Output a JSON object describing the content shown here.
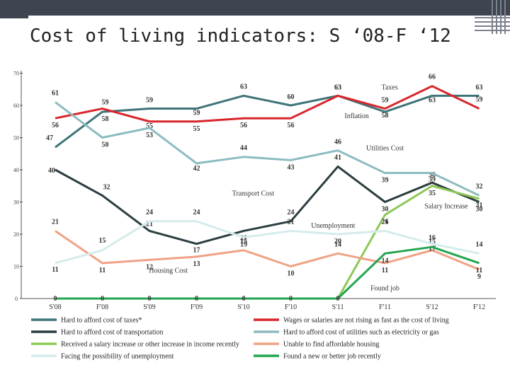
{
  "slide": {
    "title": "Cost of living indicators: S ‘08-F ‘12"
  },
  "colors": {
    "topbar": "#3f4451",
    "taxes": "#3e7479",
    "wages": "#d9262c",
    "transport": "#2b3d40",
    "utilities": "#8cbcc0",
    "salary": "#8dc857",
    "housing": "#f0a285",
    "unemployment": "#d5ecec",
    "found_job": "#23a54f"
  },
  "chart_data": {
    "type": "line",
    "categories": [
      "S'08",
      "F'08",
      "S'09",
      "F'09",
      "S'10",
      "F'10",
      "S'11",
      "F'11",
      "S'12",
      "F'12"
    ],
    "ylim": [
      0,
      70
    ],
    "yticks": [
      "0",
      "10",
      "20",
      "30",
      "40",
      "50",
      "60",
      "70"
    ],
    "series": [
      {
        "key": "taxes",
        "name": "Hard to afford cost of taxes",
        "legend_label": "Hard to afford cost of taxes*",
        "values": [
          47,
          58,
          59,
          59,
          63,
          60,
          63,
          58,
          63,
          63
        ],
        "labels": [
          "47",
          "58",
          "59",
          "59",
          "63",
          "60",
          "63",
          "58",
          "63",
          "63"
        ],
        "chart_label": "Taxes"
      },
      {
        "key": "wages",
        "name": "Wages or salaries are not rising as fast as the cost of living",
        "legend_label": "Wages or salaries are not rising as fast as the cost of living",
        "values": [
          56,
          59,
          55,
          55,
          56,
          56,
          63,
          59,
          66,
          59
        ],
        "labels": [
          "56",
          "59",
          "55",
          "55",
          "56",
          "56",
          "63",
          "59",
          "66",
          "59"
        ],
        "chart_label": "Inflation"
      },
      {
        "key": "transport",
        "name": "Hard to afford cost of transportation",
        "legend_label": "Hard to afford cost of transportation",
        "values": [
          40,
          32,
          21,
          17,
          21,
          24,
          41,
          30,
          36,
          30
        ],
        "labels": [
          "40",
          "32",
          "21",
          "17",
          "21",
          "24",
          "41",
          "30",
          "36",
          "30"
        ],
        "chart_label": "Transport Cost"
      },
      {
        "key": "utilities",
        "name": "Hard to afford cost of utilities such as electricity or gas",
        "legend_label": "Hard to afford cost of utilities such as electricity or gas",
        "values": [
          61,
          50,
          53,
          42,
          44,
          43,
          46,
          39,
          39,
          32
        ],
        "labels": [
          "61",
          "50",
          "53",
          "42",
          "44",
          "43",
          "46",
          "39",
          "39",
          "32"
        ],
        "chart_label": "Utilities Cost"
      },
      {
        "key": "salary",
        "name": "Received a salary increase or other increase in income recently",
        "legend_label": "Received a salary increase or other increase in income recently",
        "values": [
          0,
          0,
          0,
          0,
          0,
          0,
          0,
          26,
          35,
          31
        ],
        "labels": [
          "",
          "",
          "",
          "",
          "",
          "",
          "",
          "26",
          "35",
          "31"
        ],
        "chart_label": "Salary Increase"
      },
      {
        "key": "housing",
        "name": "Unable to find affordable housing",
        "legend_label": "Unable to find affordable housing",
        "values": [
          21,
          11,
          12,
          13,
          15,
          10,
          14,
          11,
          15,
          9
        ],
        "labels": [
          "21",
          "11",
          "12",
          "13",
          "15",
          "10",
          "14",
          "11",
          "15",
          "9"
        ],
        "chart_label": "Housing Cost"
      },
      {
        "key": "unemployment",
        "name": "Facing the possibility of unemployment",
        "legend_label": "Facing the possibility of unemployment",
        "values": [
          11,
          15,
          24,
          24,
          19,
          21,
          20,
          21,
          17,
          14
        ],
        "labels": [
          "11",
          "15",
          "24",
          "24",
          "19",
          "21",
          "20",
          "21",
          "17",
          "14"
        ],
        "chart_label": "Unemployment"
      },
      {
        "key": "found_job",
        "name": "Found a new or better job recently",
        "legend_label": "Found a new or better job recently",
        "values": [
          0,
          0,
          0,
          0,
          0,
          0,
          0,
          14,
          16,
          11
        ],
        "labels": [
          "0",
          "0",
          "0",
          "0",
          "0",
          "0",
          "0",
          "14",
          "16",
          "11"
        ],
        "chart_label": "Found job"
      }
    ],
    "legend_placement": "bottom, two columns",
    "grid": false
  }
}
